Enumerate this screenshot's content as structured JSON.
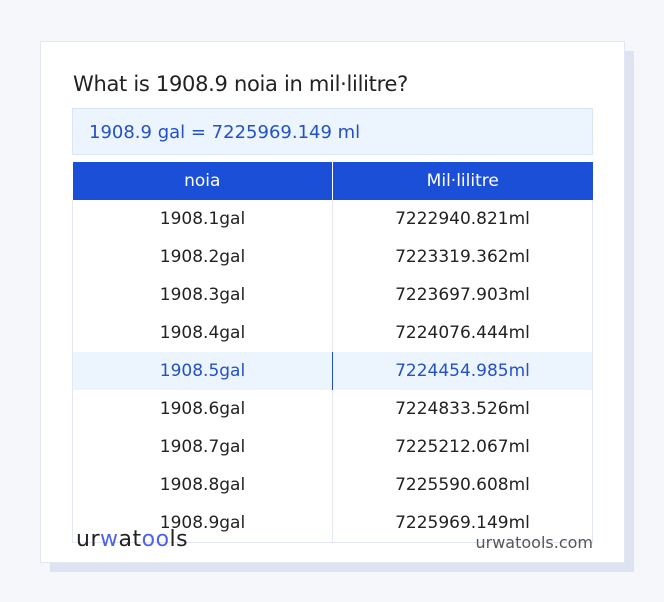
{
  "title": "What is 1908.9 noia in mil·lilitre?",
  "result": "1908.9 gal = 7225969.149 ml",
  "table": {
    "headers": [
      "noia",
      "Mil·lilitre"
    ],
    "rows": [
      [
        "1908.1gal",
        "7222940.821ml"
      ],
      [
        "1908.2gal",
        "7223319.362ml"
      ],
      [
        "1908.3gal",
        "7223697.903ml"
      ],
      [
        "1908.4gal",
        "7224076.444ml"
      ],
      [
        "1908.5gal",
        "7224454.985ml"
      ],
      [
        "1908.6gal",
        "7224833.526ml"
      ],
      [
        "1908.7gal",
        "7225212.067ml"
      ],
      [
        "1908.8gal",
        "7225590.608ml"
      ],
      [
        "1908.9gal",
        "7225969.149ml"
      ]
    ],
    "highlighted_row": 4
  },
  "footer": {
    "logo": "urwatools",
    "site": "urwatools.com"
  },
  "colors": {
    "accent": "#1c4fd8",
    "highlight_bg": "#ecf4fe",
    "highlight_text": "#2451c4"
  }
}
